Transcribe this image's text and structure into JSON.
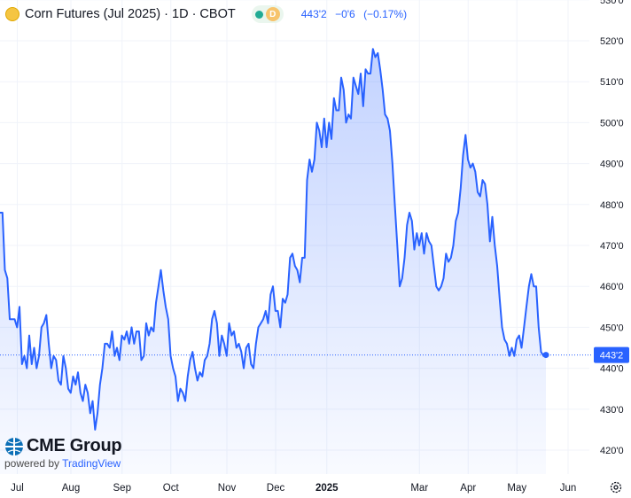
{
  "header": {
    "title": "Corn Futures (Jul 2025) · 1D · CBOT",
    "badge": "D",
    "price": "443'2",
    "change": "−0'6",
    "change_pct": "(−0.17%)"
  },
  "logo": {
    "brand": "CME Group",
    "powered_prefix": "powered by",
    "powered_brand": "TradingView"
  },
  "colors": {
    "line": "#2962ff",
    "fill": "#2962ff",
    "price_label_bg": "#2962ff",
    "grid": "#f0f3fa"
  },
  "chart_data": {
    "type": "area",
    "x_unit": "trading day index (day 0 ≈ 2024-06-28, last ≈ 2025-06-04)",
    "ylim": [
      415,
      530
    ],
    "grid": true,
    "y_ticks": [
      "530'0",
      "520'0",
      "510'0",
      "500'0",
      "490'0",
      "480'0",
      "470'0",
      "460'0",
      "450'0",
      "440'0",
      "430'0",
      "420'0"
    ],
    "x_ticks": [
      {
        "label": "Jul",
        "day": 2,
        "bold": false
      },
      {
        "label": "Aug",
        "day": 24,
        "bold": false
      },
      {
        "label": "Sep",
        "day": 45,
        "bold": false
      },
      {
        "label": "Oct",
        "day": 65,
        "bold": false
      },
      {
        "label": "Nov",
        "day": 88,
        "bold": false
      },
      {
        "label": "Dec",
        "day": 108,
        "bold": false
      },
      {
        "label": "2025",
        "day": 129,
        "bold": true
      },
      {
        "label": "Mar",
        "day": 167,
        "bold": false
      },
      {
        "label": "Apr",
        "day": 187,
        "bold": false
      },
      {
        "label": "May",
        "day": 207,
        "bold": false
      },
      {
        "label": "Jun",
        "day": 228,
        "bold": false
      }
    ],
    "last_price": 443.25,
    "last_price_label": "443'2",
    "series": [
      {
        "values": [
          478,
          478,
          464,
          462,
          452,
          452,
          452,
          450,
          455,
          441,
          443,
          440,
          448,
          441,
          445,
          440,
          443,
          450,
          451,
          453,
          446,
          440,
          443,
          442,
          437,
          436,
          443,
          440,
          435,
          434,
          438,
          436,
          439,
          434,
          432,
          436,
          434,
          429,
          432,
          425,
          429,
          436,
          440,
          446,
          446,
          445,
          449,
          443,
          445,
          442,
          448,
          447,
          449,
          446,
          450,
          446,
          449,
          449,
          442,
          443,
          451,
          448,
          450,
          449,
          456,
          460,
          464,
          459,
          455,
          452,
          443,
          440,
          438,
          432,
          435,
          434,
          432,
          438,
          442,
          444,
          440,
          437,
          439,
          438,
          442,
          443,
          446,
          452,
          454,
          451,
          443,
          448,
          446,
          443,
          451,
          448,
          449,
          445,
          446,
          444,
          440,
          445,
          446,
          441,
          440,
          446,
          450,
          451,
          452,
          454,
          451,
          458,
          460,
          454,
          454,
          450,
          457,
          456,
          458,
          467,
          468,
          465,
          464,
          461,
          467,
          467,
          486,
          491,
          488,
          491,
          500,
          498,
          494,
          501,
          494,
          500,
          496,
          506,
          503,
          503,
          511,
          508,
          500,
          502,
          501,
          511,
          509,
          507,
          512,
          504,
          513,
          512,
          512,
          518,
          516,
          517,
          513,
          508,
          502,
          501,
          498,
          490,
          480,
          470,
          460,
          462,
          467,
          475,
          478,
          476,
          469,
          473,
          470,
          473,
          468,
          473,
          471,
          470,
          465,
          460,
          459,
          460,
          462,
          468,
          466,
          467,
          470,
          476,
          478,
          484,
          492,
          497,
          491,
          489,
          490,
          488,
          483,
          482,
          486,
          485,
          480,
          471,
          477,
          470,
          465,
          457,
          450,
          447,
          446,
          443,
          445,
          443,
          447,
          448,
          445,
          450,
          455,
          460,
          463,
          460,
          460,
          450,
          444,
          443,
          443
        ]
      }
    ]
  }
}
